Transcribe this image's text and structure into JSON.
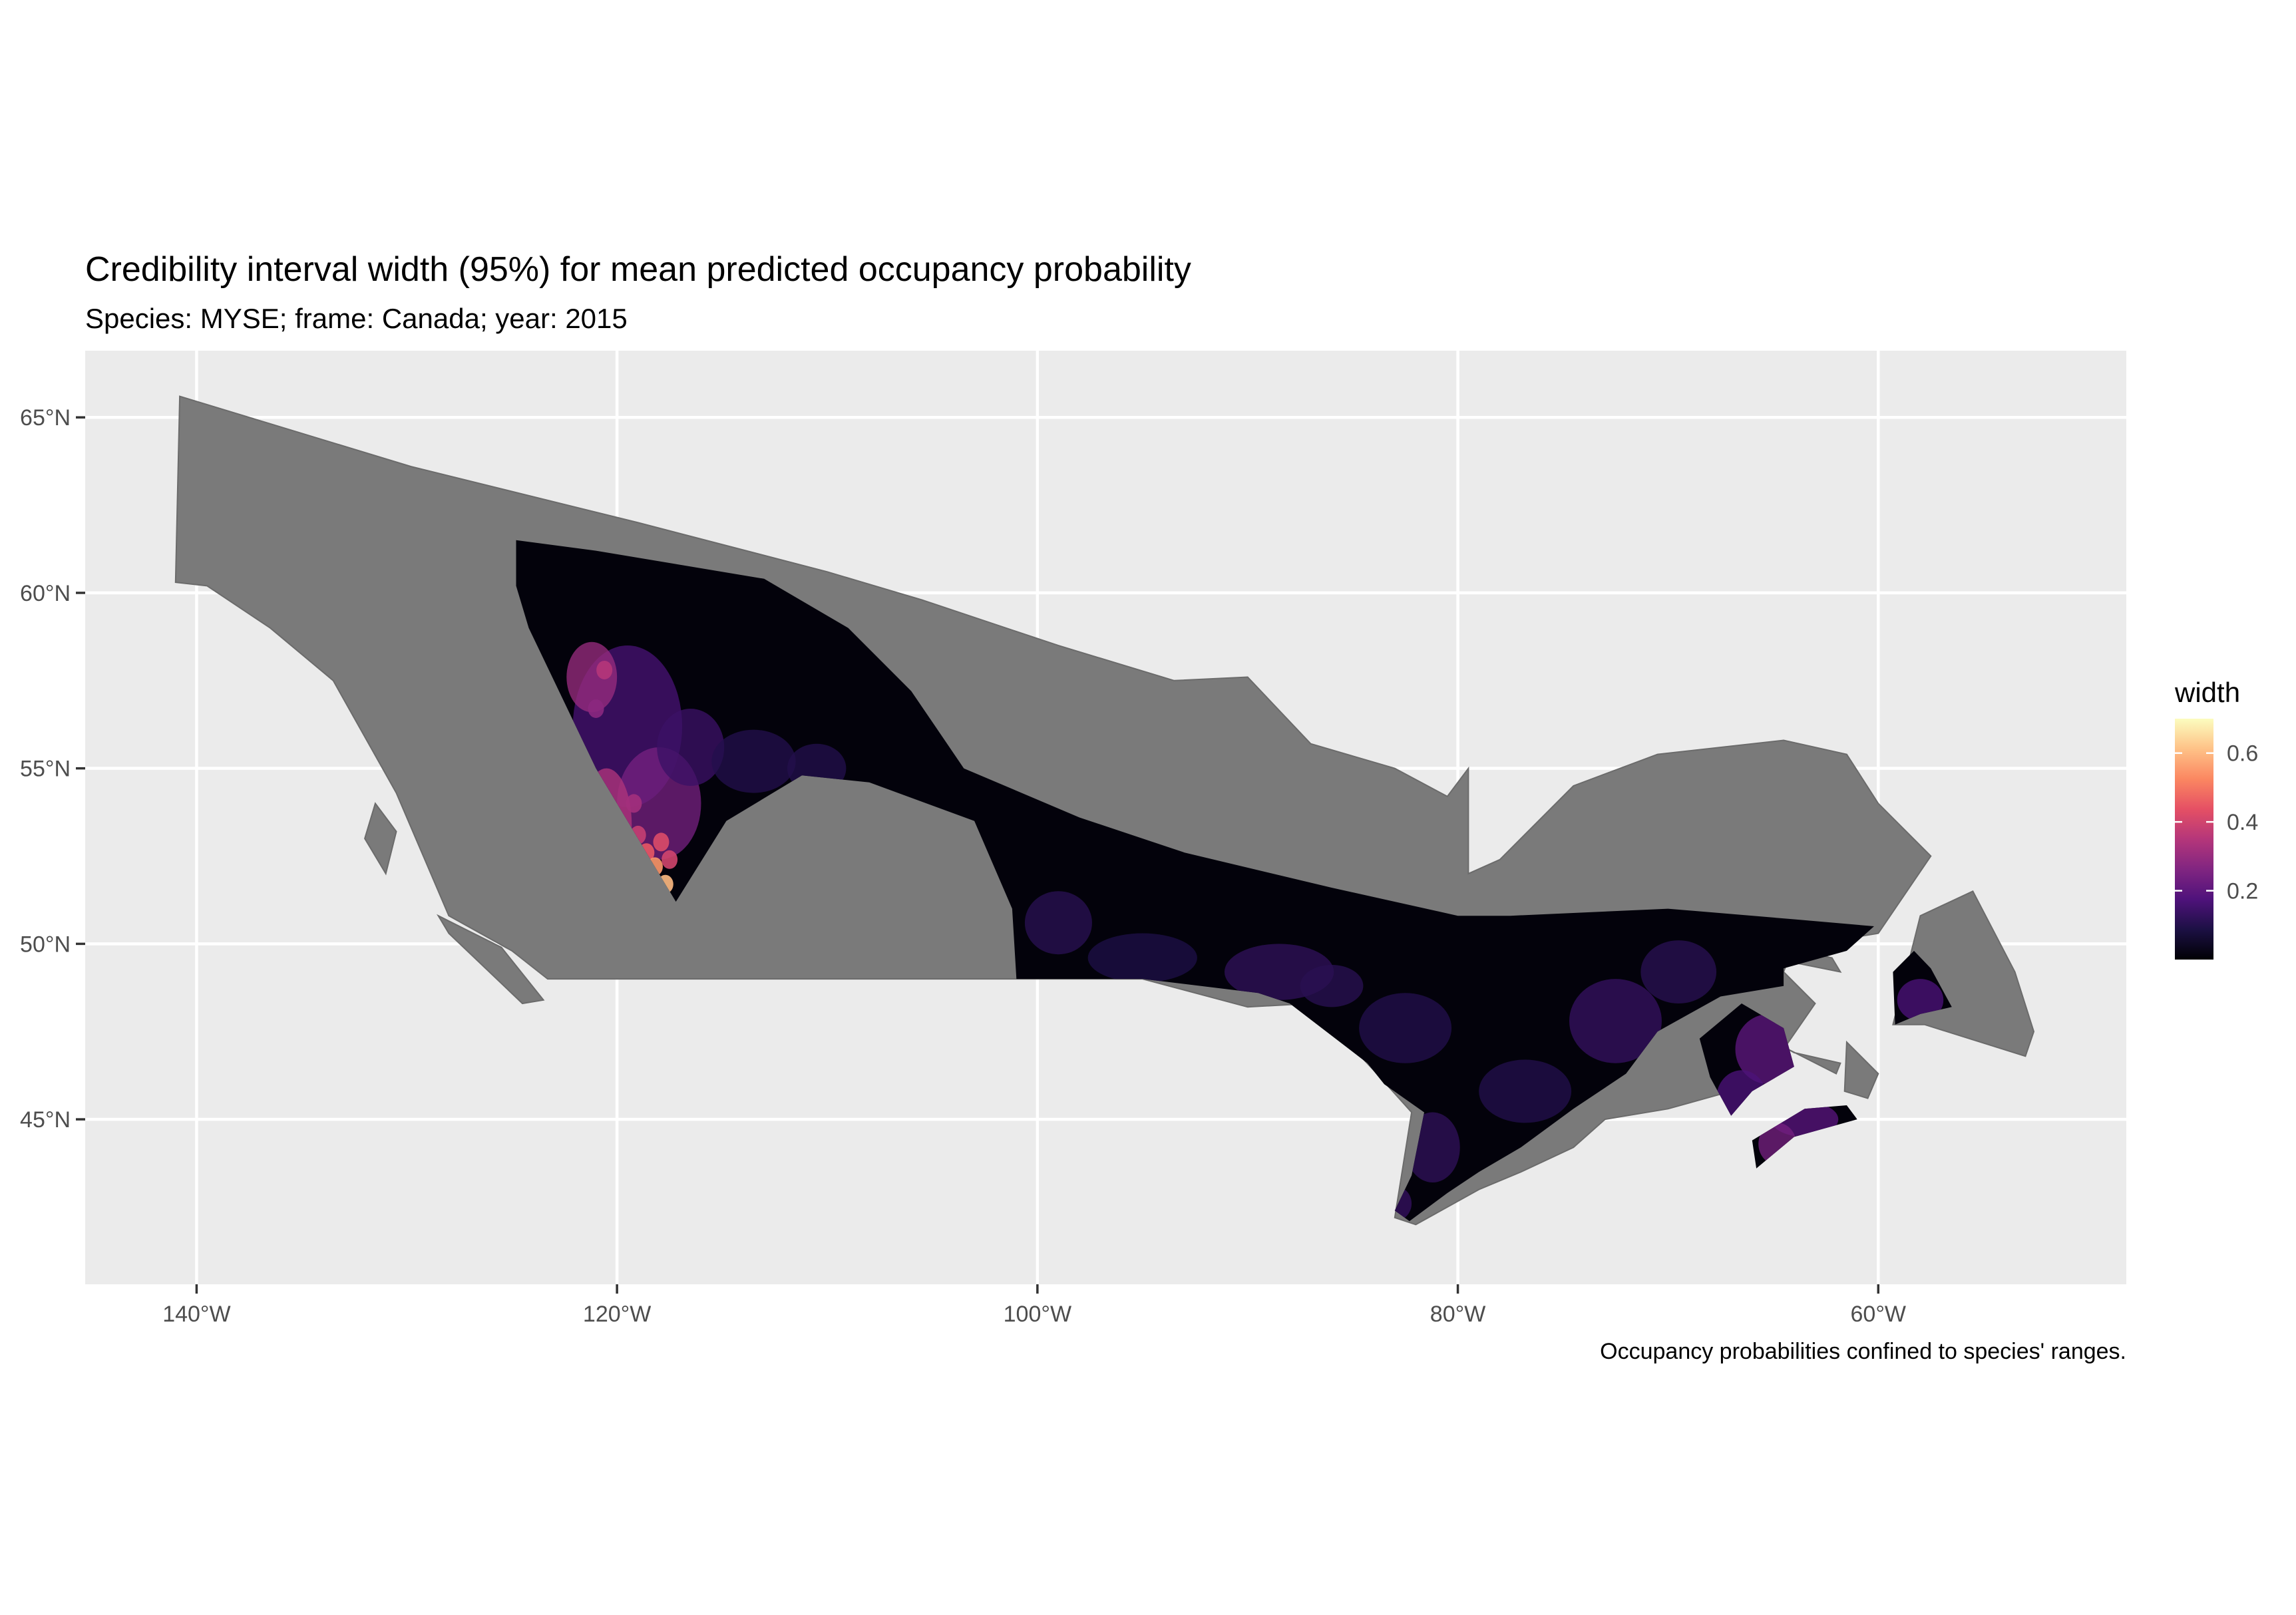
{
  "title": "Credibility interval width (95%) for mean predicted occupancy probability",
  "subtitle": "Species: MYSE; frame: Canada; year: 2015",
  "caption": "Occupancy probabilities confined to species' ranges.",
  "colors": {
    "panel_background": "#ebebeb",
    "grid": "#ffffff",
    "range_fill": "#7a7a7a",
    "scale_low": "#000004",
    "scale_high": "#fcfdbf"
  },
  "axes": {
    "x_ticks": [
      {
        "value": -140,
        "label": "140°W"
      },
      {
        "value": -120,
        "label": "120°W"
      },
      {
        "value": -100,
        "label": "100°W"
      },
      {
        "value": -80,
        "label": "80°W"
      },
      {
        "value": -60,
        "label": "60°W"
      }
    ],
    "y_ticks": [
      {
        "value": 45,
        "label": "45°N"
      },
      {
        "value": 50,
        "label": "50°N"
      },
      {
        "value": 55,
        "label": "55°N"
      },
      {
        "value": 60,
        "label": "60°N"
      },
      {
        "value": 65,
        "label": "65°N"
      }
    ],
    "xlim": [
      -145.3,
      -48.2
    ],
    "ylim": [
      40.3,
      66.9
    ]
  },
  "legend": {
    "title": "width",
    "placement": "right",
    "range": [
      0,
      0.7
    ],
    "breaks": [
      {
        "value": 0.2,
        "label": "0.2"
      },
      {
        "value": 0.4,
        "label": "0.4"
      },
      {
        "value": 0.6,
        "label": "0.6"
      }
    ],
    "palette": [
      "#000004",
      "#1c1044",
      "#4f127b",
      "#812581",
      "#b5367a",
      "#e55064",
      "#fb8761",
      "#fec287",
      "#fcfdbf"
    ]
  },
  "map": {
    "range_outline": [
      [
        -140.8,
        65.6
      ],
      [
        -129.8,
        63.6
      ],
      [
        -119.0,
        62.0
      ],
      [
        -110.0,
        60.6
      ],
      [
        -105.5,
        59.8
      ],
      [
        -99.0,
        58.5
      ],
      [
        -93.5,
        57.5
      ],
      [
        -90.0,
        57.6
      ],
      [
        -87.0,
        55.7
      ],
      [
        -83.0,
        55.0
      ],
      [
        -80.5,
        54.2
      ],
      [
        -79.5,
        55.0
      ],
      [
        -79.5,
        52.0
      ],
      [
        -78.0,
        52.4
      ],
      [
        -74.5,
        54.5
      ],
      [
        -70.5,
        55.4
      ],
      [
        -64.5,
        55.8
      ],
      [
        -61.5,
        55.4
      ],
      [
        -60.0,
        54.0
      ],
      [
        -57.5,
        52.5
      ],
      [
        -60.0,
        50.3
      ],
      [
        -61.0,
        50.2
      ],
      [
        -64.0,
        50.0
      ],
      [
        -64.5,
        49.2
      ],
      [
        -63.0,
        48.3
      ],
      [
        -64.5,
        47.0
      ],
      [
        -65.5,
        46.1
      ],
      [
        -67.0,
        45.8
      ],
      [
        -70.0,
        45.3
      ],
      [
        -73.0,
        45.0
      ],
      [
        -74.5,
        44.2
      ],
      [
        -77.0,
        43.5
      ],
      [
        -79.0,
        43.0
      ],
      [
        -82.0,
        42.0
      ],
      [
        -83.0,
        42.2
      ],
      [
        -82.2,
        45.2
      ],
      [
        -84.0,
        46.4
      ],
      [
        -87.0,
        48.3
      ],
      [
        -90.0,
        48.2
      ],
      [
        -95.0,
        49.0
      ],
      [
        -123.3,
        49.0
      ],
      [
        -125.0,
        49.8
      ],
      [
        -128.0,
        50.8
      ],
      [
        -130.5,
        54.3
      ],
      [
        -133.5,
        57.5
      ],
      [
        -136.5,
        59.0
      ],
      [
        -139.5,
        60.2
      ],
      [
        -141.0,
        60.3
      ]
    ],
    "range_patches": [
      [
        [
          -131.5,
          54.0
        ],
        [
          -130.5,
          53.2
        ],
        [
          -131.0,
          52.0
        ],
        [
          -132.0,
          53.0
        ]
      ],
      [
        [
          -128.5,
          50.8
        ],
        [
          -125.5,
          49.9
        ],
        [
          -123.5,
          48.4
        ],
        [
          -124.5,
          48.3
        ],
        [
          -128.0,
          50.3
        ]
      ],
      [
        [
          -57.8,
          47.7
        ],
        [
          -53.0,
          46.8
        ],
        [
          -52.6,
          47.5
        ],
        [
          -53.5,
          49.2
        ],
        [
          -55.5,
          51.5
        ],
        [
          -58.0,
          50.8
        ],
        [
          -59.3,
          47.7
        ]
      ],
      [
        [
          -64.3,
          47.0
        ],
        [
          -62.0,
          46.3
        ],
        [
          -61.8,
          46.6
        ],
        [
          -64.0,
          46.9
        ]
      ],
      [
        [
          -64.5,
          49.9
        ],
        [
          -62.2,
          49.6
        ],
        [
          -61.8,
          49.2
        ],
        [
          -64.3,
          49.5
        ]
      ],
      [
        [
          -61.5,
          47.2
        ],
        [
          -60.0,
          46.3
        ],
        [
          -60.5,
          45.6
        ],
        [
          -61.6,
          45.8
        ]
      ]
    ],
    "prediction_outline": [
      [
        -124.8,
        61.5
      ],
      [
        -121.0,
        61.2
      ],
      [
        -113.0,
        60.4
      ],
      [
        -109.0,
        59.0
      ],
      [
        -106.0,
        57.2
      ],
      [
        -103.5,
        55.0
      ],
      [
        -98.0,
        53.6
      ],
      [
        -93.0,
        52.6
      ],
      [
        -86.0,
        51.6
      ],
      [
        -80.0,
        50.8
      ],
      [
        -77.5,
        50.8
      ],
      [
        -70.0,
        51.0
      ],
      [
        -64.0,
        50.7
      ],
      [
        -60.2,
        50.5
      ],
      [
        -61.5,
        49.8
      ],
      [
        -64.5,
        49.3
      ],
      [
        -64.5,
        48.8
      ],
      [
        -67.5,
        48.5
      ],
      [
        -70.5,
        47.5
      ],
      [
        -72.0,
        46.3
      ],
      [
        -74.5,
        45.3
      ],
      [
        -77.0,
        44.2
      ],
      [
        -79.0,
        43.5
      ],
      [
        -80.5,
        42.9
      ],
      [
        -82.3,
        42.1
      ],
      [
        -83.0,
        42.4
      ],
      [
        -82.2,
        43.4
      ],
      [
        -81.6,
        45.2
      ],
      [
        -83.5,
        46.0
      ],
      [
        -84.3,
        46.6
      ],
      [
        -88.0,
        48.3
      ],
      [
        -89.5,
        48.6
      ],
      [
        -95.0,
        49.0
      ],
      [
        -101.0,
        49.0
      ],
      [
        -101.2,
        51.0
      ],
      [
        -103.0,
        53.5
      ],
      [
        -108.0,
        54.6
      ],
      [
        -111.2,
        54.8
      ],
      [
        -114.8,
        53.5
      ],
      [
        -117.2,
        51.2
      ],
      [
        -118.5,
        52.5
      ],
      [
        -121.0,
        55.0
      ],
      [
        -124.2,
        59.0
      ],
      [
        -124.8,
        60.2
      ]
    ],
    "prediction_patches": [
      [
        [
          -66.5,
          48.3
        ],
        [
          -64.5,
          47.6
        ],
        [
          -64.0,
          46.5
        ],
        [
          -66.0,
          45.8
        ],
        [
          -67.0,
          45.1
        ],
        [
          -68.0,
          46.2
        ],
        [
          -68.5,
          47.3
        ]
      ],
      [
        [
          -66.0,
          44.4
        ],
        [
          -63.5,
          45.3
        ],
        [
          -61.5,
          45.4
        ],
        [
          -61.0,
          45.0
        ],
        [
          -64.0,
          44.5
        ],
        [
          -65.8,
          43.6
        ]
      ],
      [
        [
          -59.2,
          47.7
        ],
        [
          -58.0,
          48.0
        ],
        [
          -56.5,
          48.2
        ],
        [
          -57.5,
          49.3
        ],
        [
          -58.3,
          49.8
        ],
        [
          -59.3,
          49.2
        ]
      ]
    ]
  }
}
